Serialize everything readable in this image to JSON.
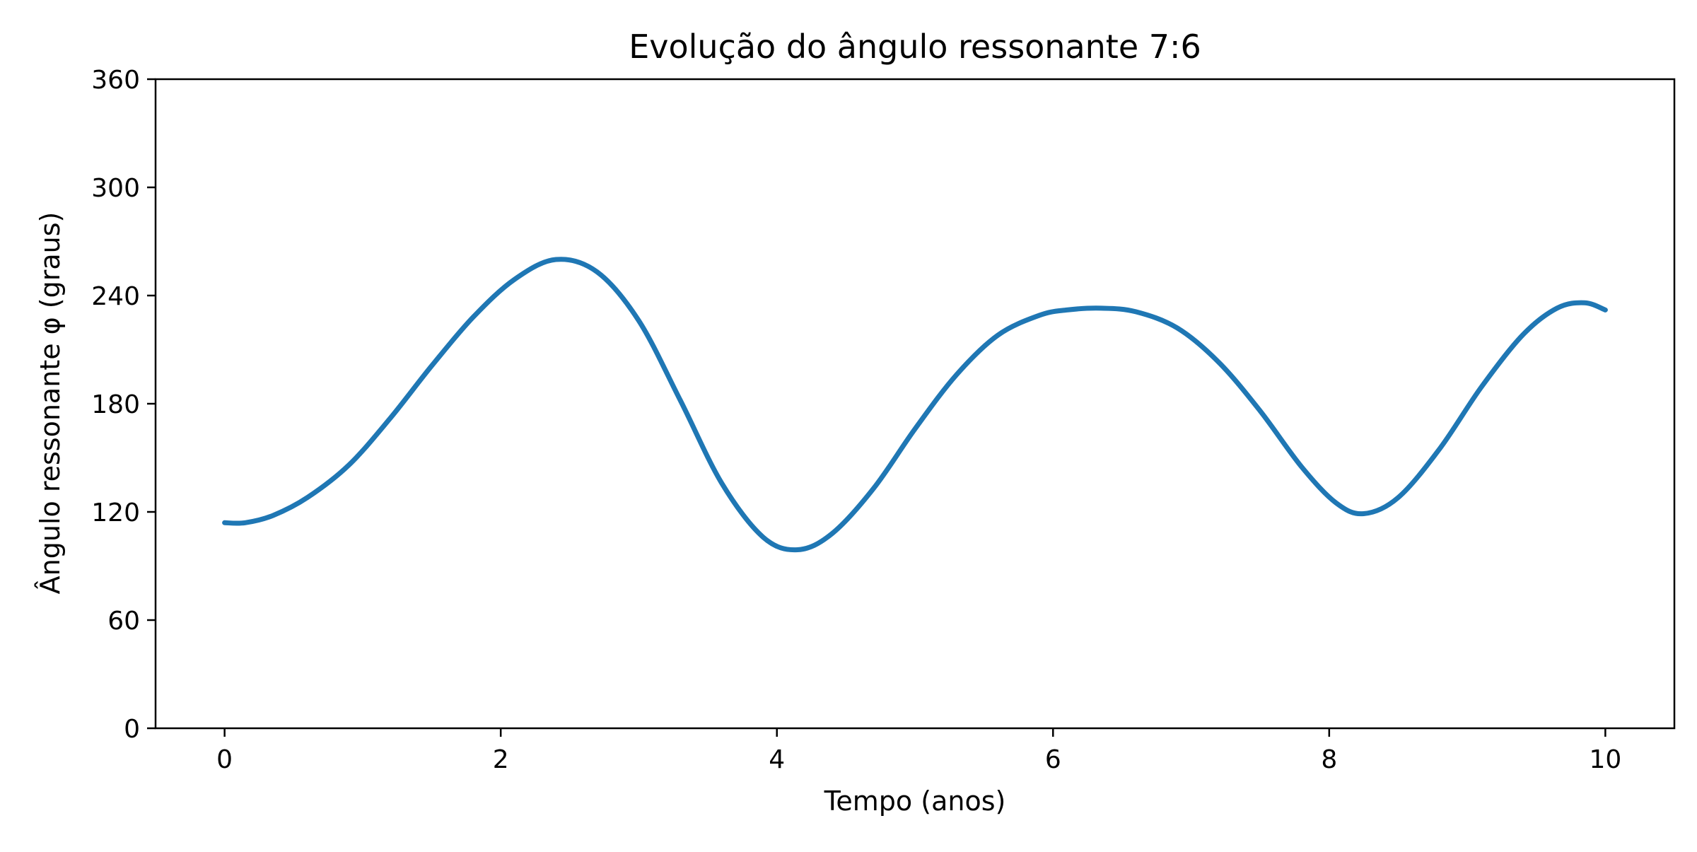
{
  "chart_data": {
    "type": "line",
    "title": "Evolução do ângulo ressonante 7:6",
    "xlabel": "Tempo (anos)",
    "ylabel": "Ângulo ressonante φ (graus)",
    "xlim": [
      -0.5,
      10.5
    ],
    "ylim": [
      0,
      360
    ],
    "xticks": [
      0,
      2,
      4,
      6,
      8,
      10
    ],
    "xtick_labels": [
      "0",
      "2",
      "4",
      "6",
      "8",
      "10"
    ],
    "yticks": [
      0,
      60,
      120,
      180,
      240,
      300,
      360
    ],
    "ytick_labels": [
      "0",
      "60",
      "120",
      "180",
      "240",
      "300",
      "360"
    ],
    "grid": false,
    "line_color": "#1f77b4",
    "series": [
      {
        "x": [
          0,
          0.15,
          0.35,
          0.6,
          0.9,
          1.2,
          1.5,
          1.8,
          2.1,
          2.4,
          2.7,
          3.0,
          3.3,
          3.6,
          3.9,
          4.15,
          4.4,
          4.7,
          5.0,
          5.3,
          5.6,
          5.9,
          6.1,
          6.35,
          6.6,
          6.9,
          7.2,
          7.5,
          7.8,
          8.05,
          8.25,
          8.5,
          8.8,
          9.1,
          9.4,
          9.65,
          9.85,
          10.0
        ],
        "y": [
          114,
          114,
          118,
          128,
          146,
          172,
          201,
          228,
          249,
          260,
          253,
          226,
          182,
          136,
          106,
          99,
          108,
          133,
          166,
          196,
          218,
          229,
          232,
          233,
          231,
          222,
          203,
          176,
          145,
          125,
          119,
          128,
          155,
          189,
          218,
          233,
          236,
          232
        ]
      }
    ]
  }
}
